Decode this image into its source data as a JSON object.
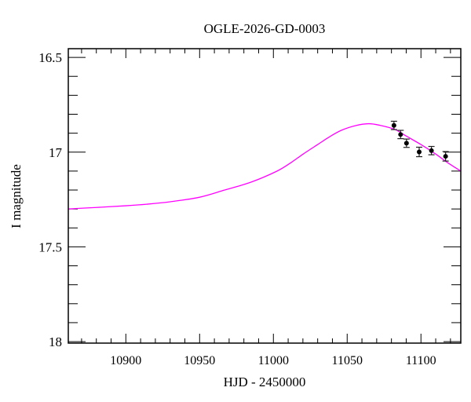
{
  "chart_data": {
    "type": "scatter",
    "title": "OGLE-2026-GD-0003",
    "xlabel": "HJD - 2450000",
    "ylabel": "I magnitude",
    "xlim": [
      10861,
      11127
    ],
    "ylim": [
      18.008,
      16.454
    ],
    "y_inverted": true,
    "grid": false,
    "x_ticks": [
      10900,
      10950,
      11000,
      11050,
      11100
    ],
    "x_tick_labels": [
      "10900",
      "10950",
      "11000",
      "11050",
      "11100"
    ],
    "x_minor_step": 10,
    "y_ticks": [
      16.5,
      17,
      17.5,
      18
    ],
    "y_tick_labels": [
      "16.5",
      "17",
      "17.5",
      "18"
    ],
    "y_minor_step": 0.1,
    "series": [
      {
        "type": "scatter",
        "color": "#000000",
        "points": [
          {
            "x": 11081.7,
            "y": 16.859,
            "err": 0.022
          },
          {
            "x": 11086.2,
            "y": 16.907,
            "err": 0.022
          },
          {
            "x": 11090.2,
            "y": 16.953,
            "err": 0.022
          },
          {
            "x": 11098.8,
            "y": 16.999,
            "err": 0.025
          },
          {
            "x": 11107.1,
            "y": 16.992,
            "err": 0.022
          },
          {
            "x": 11116.7,
            "y": 17.022,
            "err": 0.025
          }
        ]
      },
      {
        "type": "line",
        "color": "#ff00ff",
        "x": [
          10861,
          10880,
          10900,
          10914,
          10930,
          10950,
          10967,
          10985,
          11002.5,
          11012,
          11020.2,
          11030,
          11037.9,
          11046,
          11055.7,
          11064.5,
          11072,
          11082.3,
          11090,
          11100,
          11110,
          11118,
          11127
        ],
        "y": [
          17.3,
          17.292,
          17.283,
          17.275,
          17.262,
          17.238,
          17.2,
          17.158,
          17.1,
          17.055,
          17.01,
          16.96,
          16.92,
          16.885,
          16.86,
          16.85,
          16.858,
          16.88,
          16.915,
          16.96,
          17.01,
          17.055,
          17.1
        ]
      }
    ]
  }
}
